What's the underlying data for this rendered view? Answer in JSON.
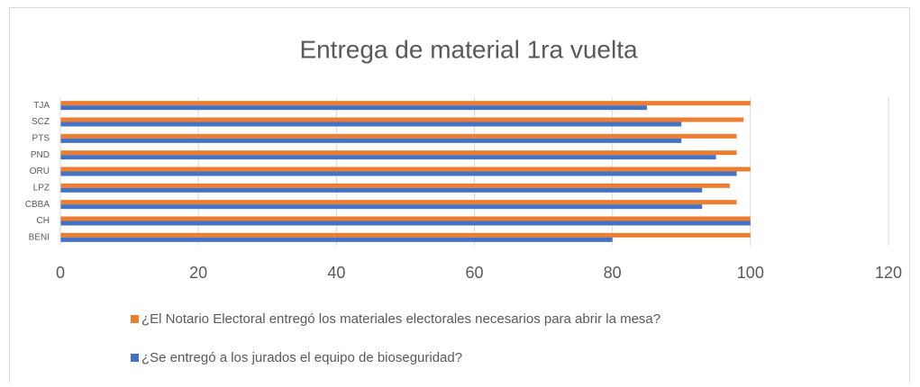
{
  "chart_data": {
    "type": "hbar",
    "title": "Entrega de material 1ra vuelta",
    "categories": [
      "BENI",
      "CH",
      "CBBA",
      "LPZ",
      "ORU",
      "PND",
      "PTS",
      "SCZ",
      "TJA"
    ],
    "series": [
      {
        "name": "¿El Notario Electoral entregó los materiales electorales necesarios para abrir la mesa?",
        "color": "#ED7D31",
        "values": [
          100,
          100,
          98,
          97,
          100,
          98,
          98,
          99,
          100
        ]
      },
      {
        "name": "¿Se entregó a los jurados el equipo de bioseguridad?",
        "color": "#4472C4",
        "values": [
          80,
          100,
          93,
          93,
          98,
          95,
          90,
          90,
          85
        ]
      }
    ],
    "xlim": [
      0,
      120
    ],
    "xticks": [
      0,
      20,
      40,
      60,
      80,
      100,
      120
    ],
    "grid": true
  }
}
